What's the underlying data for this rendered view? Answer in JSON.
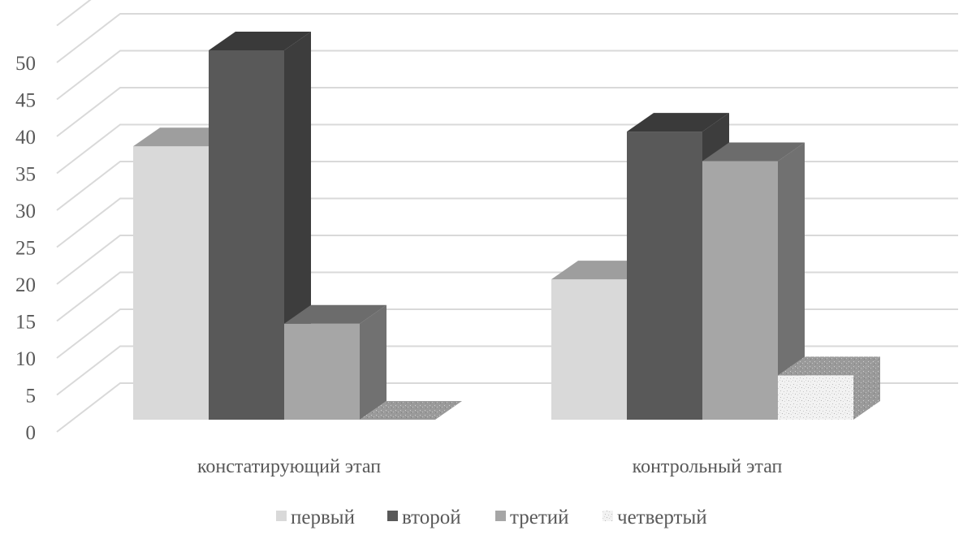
{
  "chart_data": {
    "type": "bar",
    "subtype": "3d-clustered-column",
    "categories": [
      "констатирующий этап",
      "контрольный этап"
    ],
    "series": [
      {
        "name": "первый",
        "values": [
          37,
          19
        ],
        "color": "#d9d9d9"
      },
      {
        "name": "второй",
        "values": [
          50,
          39
        ],
        "color": "#595959"
      },
      {
        "name": "третий",
        "values": [
          13,
          35
        ],
        "color": "#a6a6a6"
      },
      {
        "name": "четвертый",
        "values": [
          0,
          6
        ],
        "color": "#efefef",
        "pattern": "speckled"
      }
    ],
    "yticks": [
      "0",
      "5",
      "10",
      "15",
      "20",
      "25",
      "30",
      "35",
      "40",
      "45",
      "50"
    ],
    "ylim": [
      0,
      55
    ],
    "grid": true,
    "legend": "bottom"
  }
}
